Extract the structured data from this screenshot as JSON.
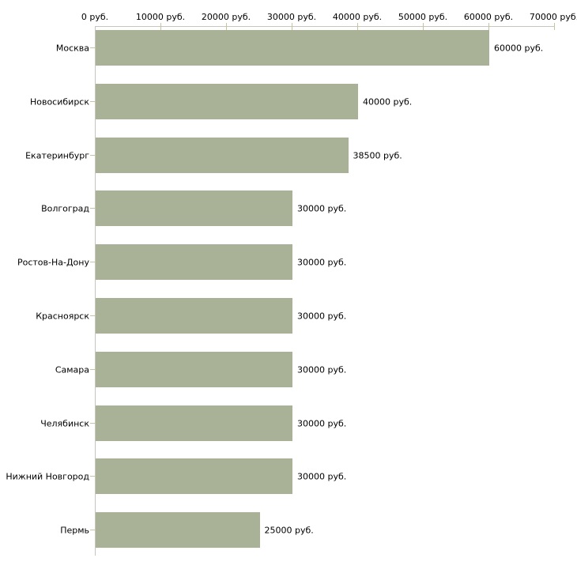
{
  "chart_data": {
    "type": "bar",
    "orientation": "horizontal",
    "title": "",
    "xlabel": "",
    "ylabel": "",
    "categories": [
      "Москва",
      "Новосибирск",
      "Екатеринбург",
      "Волгоград",
      "Ростов-На-Дону",
      "Красноярск",
      "Самара",
      "Челябинск",
      "Нижний Новгород",
      "Пермь"
    ],
    "values": [
      60000,
      40000,
      38500,
      30000,
      30000,
      30000,
      30000,
      30000,
      30000,
      25000
    ],
    "value_labels": [
      "60000 руб.",
      "40000 руб.",
      "38500 руб.",
      "30000 руб.",
      "30000 руб.",
      "30000 руб.",
      "30000 руб.",
      "30000 руб.",
      "30000 руб.",
      "25000 руб."
    ],
    "xlim": [
      0,
      70000
    ],
    "x_tick_step": 10000,
    "x_tick_labels": [
      "0 руб.",
      "10000 руб.",
      "20000 руб.",
      "30000 руб.",
      "40000 руб.",
      "50000 руб.",
      "60000 руб.",
      "70000 руб."
    ],
    "grid": false,
    "legend_position": "none"
  },
  "colors": {
    "bar": "#a9b196",
    "axis_line": "#c6c6c0",
    "tick": "#c5c59b",
    "text": "#000000",
    "background": "#ffffff"
  }
}
